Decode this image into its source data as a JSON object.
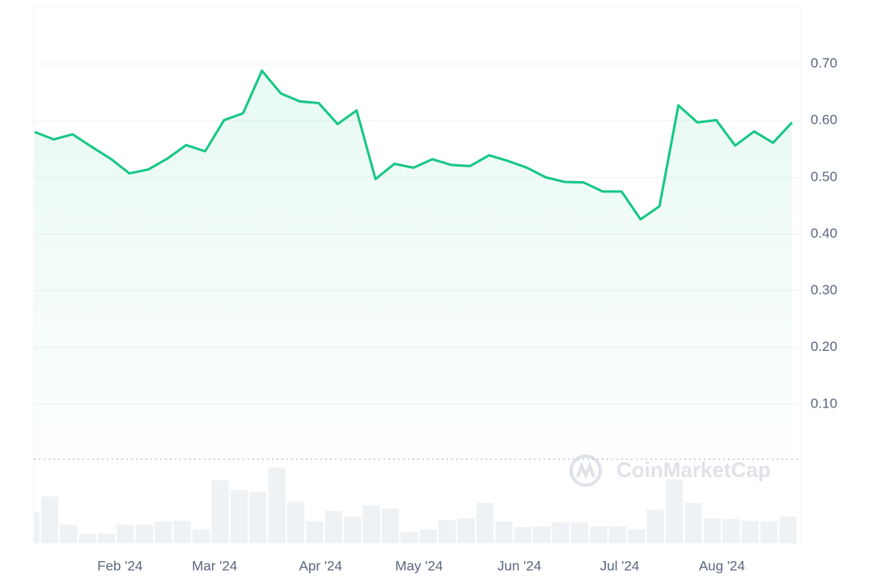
{
  "chart_data": {
    "type": "line",
    "x": [
      0,
      1,
      2,
      3,
      4,
      5,
      6,
      7,
      8,
      9,
      10,
      11,
      12,
      13,
      14,
      15,
      16,
      17,
      18,
      19,
      20,
      21,
      22,
      23,
      24,
      25,
      26,
      27,
      28,
      29,
      30,
      31,
      32,
      33,
      34,
      35,
      36,
      37,
      38,
      39,
      40
    ],
    "values": [
      0.58,
      0.567,
      0.576,
      0.554,
      0.533,
      0.507,
      0.514,
      0.533,
      0.557,
      0.546,
      0.601,
      0.613,
      0.688,
      0.648,
      0.634,
      0.631,
      0.594,
      0.618,
      0.497,
      0.524,
      0.517,
      0.532,
      0.522,
      0.52,
      0.539,
      0.529,
      0.517,
      0.5,
      0.492,
      0.491,
      0.475,
      0.475,
      0.426,
      0.449,
      0.627,
      0.597,
      0.601,
      0.556,
      0.581,
      0.561,
      0.597
    ],
    "color": "#16c784",
    "volume": [
      38,
      58,
      23,
      12,
      12,
      23,
      23,
      27,
      28,
      17,
      78,
      66,
      64,
      94,
      52,
      27,
      40,
      33,
      47,
      43,
      14,
      17,
      29,
      31,
      50,
      27,
      20,
      21,
      26,
      26,
      21,
      21,
      17,
      42,
      79,
      50,
      31,
      30,
      28,
      27,
      33
    ],
    "volume_color": "#eff2f5",
    "volume_lim": [
      0,
      100
    ],
    "xlim": [
      0,
      40
    ],
    "xticks": [
      {
        "value": 4.5,
        "label": "Feb '24"
      },
      {
        "value": 9.5,
        "label": "Mar '24"
      },
      {
        "value": 15.1,
        "label": "Apr '24"
      },
      {
        "value": 20.3,
        "label": "May '24"
      },
      {
        "value": 25.6,
        "label": "Jun '24"
      },
      {
        "value": 30.9,
        "label": "Jul '24"
      },
      {
        "value": 36.3,
        "label": "Aug '24"
      }
    ],
    "ylim": [
      0,
      0.8
    ],
    "yticks": [
      {
        "value": 0.1,
        "label": "0.10"
      },
      {
        "value": 0.2,
        "label": "0.20"
      },
      {
        "value": 0.3,
        "label": "0.30"
      },
      {
        "value": 0.4,
        "label": "0.40"
      },
      {
        "value": 0.5,
        "label": "0.50"
      },
      {
        "value": 0.6,
        "label": "0.60"
      },
      {
        "value": 0.7,
        "label": "0.70"
      }
    ],
    "grid": true,
    "watermark": "CoinMarketCap"
  }
}
